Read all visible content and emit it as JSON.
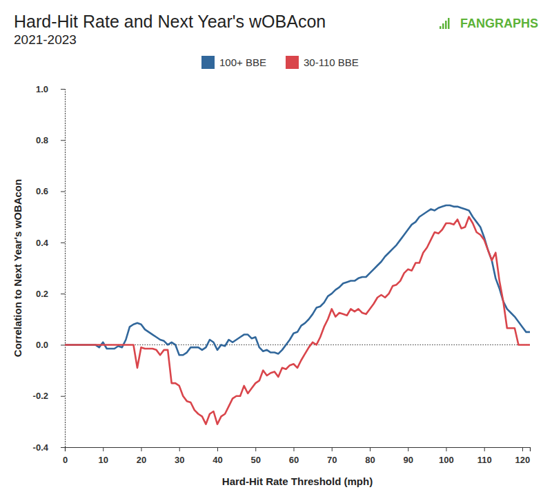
{
  "chart_data": {
    "type": "line",
    "title": "Hard-Hit Rate and Next Year's wOBAcon",
    "subtitle": "2021-2023",
    "source": "FANGRAPHS",
    "x_label": "Hard-Hit Rate Threshold (mph)",
    "y_label": "Correlation to Next Year's wOBAcon",
    "legend": "top",
    "grid": false,
    "xlim": [
      0,
      122
    ],
    "ylim": [
      -0.4,
      1
    ],
    "xticks": [
      0,
      10,
      20,
      30,
      40,
      50,
      60,
      70,
      80,
      90,
      100,
      110,
      120
    ],
    "yticks": [
      {
        "value": -0.4,
        "label": "-0.4"
      },
      {
        "value": -0.2,
        "label": "-0.2"
      },
      {
        "value": 0,
        "label": "0.0"
      },
      {
        "value": 0.2,
        "label": "0.2"
      },
      {
        "value": 0.4,
        "label": "0.4"
      },
      {
        "value": 0.6,
        "label": "0.6"
      },
      {
        "value": 0.8,
        "label": "0.8"
      },
      {
        "value": 1,
        "label": "1.0"
      }
    ],
    "x": [
      0,
      1,
      2,
      3,
      4,
      5,
      6,
      7,
      8,
      9,
      10,
      11,
      12,
      13,
      14,
      15,
      16,
      17,
      18,
      19,
      20,
      21,
      22,
      23,
      24,
      25,
      26,
      27,
      28,
      29,
      30,
      31,
      32,
      33,
      34,
      35,
      36,
      37,
      38,
      39,
      40,
      41,
      42,
      43,
      44,
      45,
      46,
      47,
      48,
      49,
      50,
      51,
      52,
      53,
      54,
      55,
      56,
      57,
      58,
      59,
      60,
      61,
      62,
      63,
      64,
      65,
      66,
      67,
      68,
      69,
      70,
      71,
      72,
      73,
      74,
      75,
      76,
      77,
      78,
      79,
      80,
      81,
      82,
      83,
      84,
      85,
      86,
      87,
      88,
      89,
      90,
      91,
      92,
      93,
      94,
      95,
      96,
      97,
      98,
      99,
      100,
      101,
      102,
      103,
      104,
      105,
      106,
      107,
      108,
      109,
      110,
      111,
      112,
      113,
      114,
      115,
      116,
      117,
      118,
      119,
      120,
      121,
      122
    ],
    "series": [
      {
        "name": "100+ BBE",
        "color": "#31679b",
        "values": [
          0,
          0,
          0,
          0,
          0,
          0,
          0,
          0,
          0,
          -0.01,
          0.01,
          -0.015,
          -0.015,
          -0.015,
          -0.005,
          -0.01,
          0.02,
          0.07,
          0.08,
          0.085,
          0.08,
          0.06,
          0.05,
          0.04,
          0.03,
          0.02,
          0.015,
          0,
          0.01,
          0,
          -0.04,
          -0.04,
          -0.03,
          -0.01,
          -0.01,
          -0.01,
          -0.02,
          -0.01,
          0.02,
          0.01,
          -0.02,
          0,
          -0.005,
          0.02,
          0.01,
          0.02,
          0.03,
          0.04,
          0.04,
          0.025,
          0.03,
          -0.01,
          -0.025,
          -0.02,
          -0.03,
          -0.03,
          -0.035,
          -0.02,
          0,
          0.02,
          0.045,
          0.05,
          0.075,
          0.085,
          0.1,
          0.12,
          0.145,
          0.15,
          0.165,
          0.19,
          0.2,
          0.215,
          0.225,
          0.24,
          0.245,
          0.25,
          0.25,
          0.26,
          0.265,
          0.265,
          0.28,
          0.295,
          0.31,
          0.325,
          0.345,
          0.36,
          0.375,
          0.39,
          0.41,
          0.43,
          0.45,
          0.47,
          0.48,
          0.5,
          0.51,
          0.52,
          0.53,
          0.525,
          0.535,
          0.54,
          0.545,
          0.545,
          0.54,
          0.54,
          0.535,
          0.53,
          0.525,
          0.5,
          0.48,
          0.46,
          0.42,
          0.37,
          0.33,
          0.26,
          0.22,
          0.17,
          0.14,
          0.125,
          0.11,
          0.09,
          0.07,
          0.05,
          0.05
        ]
      },
      {
        "name": "30-110 BBE",
        "color": "#d9454b",
        "values": [
          0,
          0,
          0,
          0,
          0,
          0,
          0,
          0,
          0,
          0,
          0,
          0,
          0,
          0,
          0,
          0,
          0,
          0,
          0,
          -0.09,
          -0.01,
          -0.015,
          -0.015,
          -0.015,
          -0.02,
          -0.04,
          -0.02,
          -0.02,
          -0.15,
          -0.15,
          -0.16,
          -0.2,
          -0.22,
          -0.225,
          -0.255,
          -0.27,
          -0.28,
          -0.31,
          -0.27,
          -0.26,
          -0.31,
          -0.28,
          -0.27,
          -0.24,
          -0.21,
          -0.2,
          -0.2,
          -0.16,
          -0.19,
          -0.17,
          -0.15,
          -0.14,
          -0.1,
          -0.12,
          -0.11,
          -0.105,
          -0.125,
          -0.09,
          -0.095,
          -0.08,
          -0.075,
          -0.09,
          -0.06,
          -0.035,
          -0.01,
          0.01,
          0,
          0.03,
          0.07,
          0.1,
          0.14,
          0.11,
          0.125,
          0.12,
          0.115,
          0.14,
          0.13,
          0.14,
          0.125,
          0.12,
          0.14,
          0.16,
          0.185,
          0.195,
          0.185,
          0.2,
          0.23,
          0.235,
          0.25,
          0.28,
          0.295,
          0.29,
          0.32,
          0.32,
          0.36,
          0.38,
          0.41,
          0.44,
          0.435,
          0.45,
          0.475,
          0.475,
          0.47,
          0.49,
          0.455,
          0.46,
          0.5,
          0.475,
          0.44,
          0.43,
          0.41,
          0.37,
          0.33,
          0.36,
          0.25,
          0.17,
          0.065,
          0.065,
          0.065,
          0,
          0,
          0,
          0
        ]
      }
    ]
  }
}
